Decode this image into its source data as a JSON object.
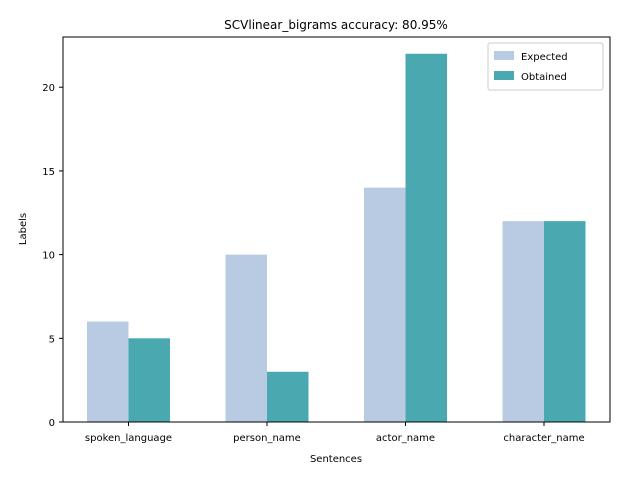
{
  "chart_data": {
    "type": "bar",
    "title": "SCVlinear_bigrams accuracy: 80.95%",
    "xlabel": "Sentences",
    "ylabel": "Labels",
    "categories": [
      "spoken_language",
      "person_name",
      "actor_name",
      "character_name"
    ],
    "series": [
      {
        "name": "Expected",
        "values": [
          6,
          10,
          14,
          12
        ],
        "color": "#b8cbe3"
      },
      {
        "name": "Obtained",
        "values": [
          5,
          3,
          22,
          12
        ],
        "color": "#4aa8b0"
      }
    ],
    "ylim": [
      0,
      23
    ],
    "yticks": [
      0,
      5,
      10,
      15,
      20
    ],
    "grid": false,
    "legend_position": "top-right"
  }
}
